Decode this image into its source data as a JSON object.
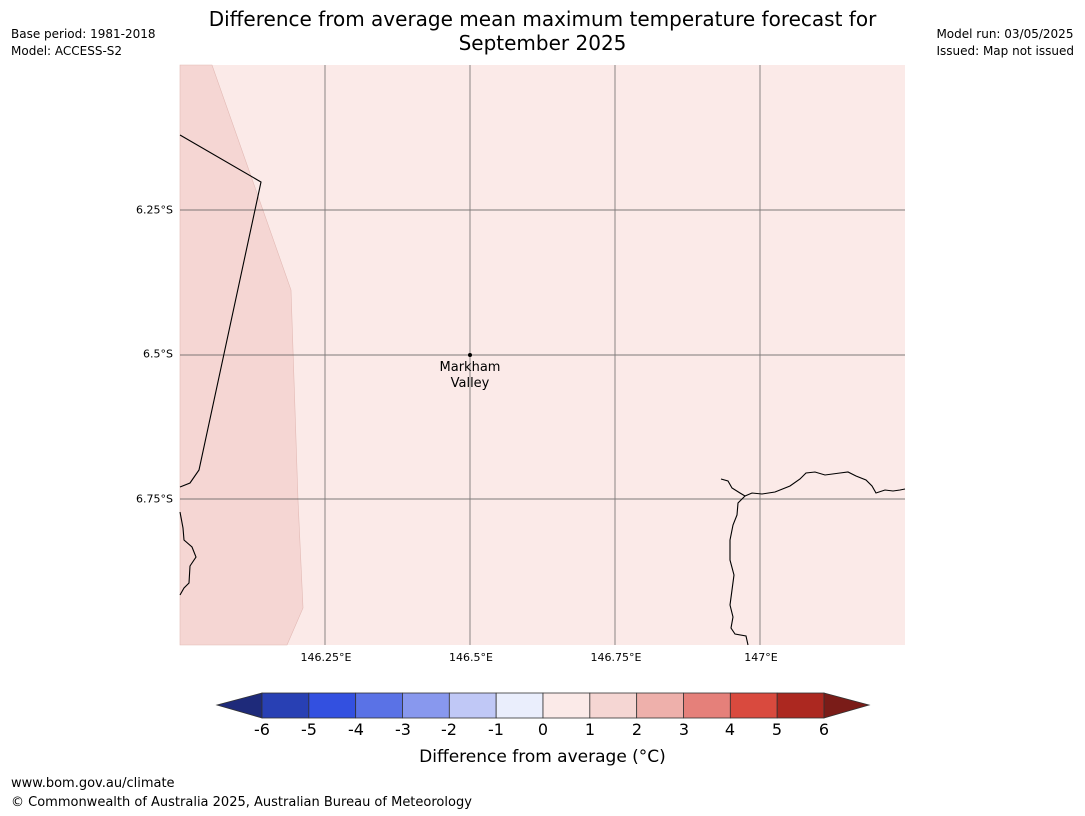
{
  "header": {
    "title_line1": "Difference from average mean maximum temperature forecast for",
    "title_line2": "September 2025",
    "base_period": "Base period: 1981-2018",
    "model": "Model: ACCESS-S2",
    "model_run": "Model run: 03/05/2025",
    "issued": "Issued: Map not issued"
  },
  "map": {
    "lat_labels": [
      "6.25°S",
      "6.5°S",
      "6.75°S"
    ],
    "lon_labels": [
      "146.25°E",
      "146.5°E",
      "146.75°E",
      "147°E"
    ],
    "place": {
      "name_line1": "Markham",
      "name_line2": "Valley",
      "lon": 146.5,
      "lat": -6.5
    },
    "regions": [
      {
        "category": "0 to 1",
        "color": "#fbeae8"
      },
      {
        "category": "1 to 2",
        "color": "#f5d6d3"
      }
    ]
  },
  "colorbar": {
    "ticks": [
      "-6",
      "-5",
      "-4",
      "-3",
      "-2",
      "-1",
      "0",
      "1",
      "2",
      "3",
      "4",
      "5",
      "6"
    ],
    "colors": [
      "#1e2a7a",
      "#2840b4",
      "#3350e0",
      "#5a72e6",
      "#8898ee",
      "#c0c8f6",
      "#eaeefc",
      "#fbeae8",
      "#f5d6d3",
      "#eeb0ab",
      "#e5807a",
      "#d94a3e",
      "#ac2820",
      "#7a1c18"
    ],
    "label": "Difference from average (°C)"
  },
  "footer": {
    "url": "www.bom.gov.au/climate",
    "copyright": "© Commonwealth of Australia 2025, Australian Bureau of Meteorology"
  }
}
